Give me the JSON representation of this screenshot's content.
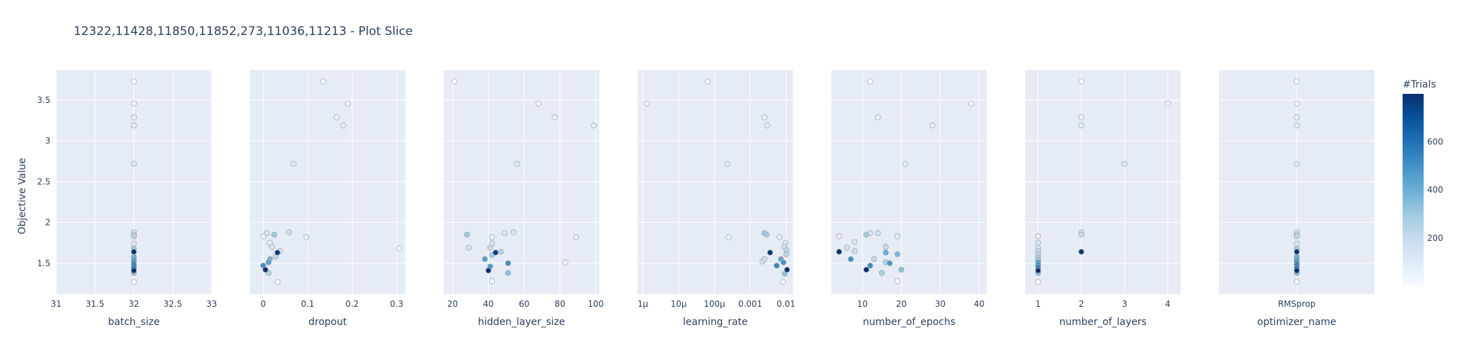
{
  "title": "12322,11428,11850,11852,273,11036,11213 - Plot Slice",
  "y_axis_label": "Objective Value",
  "colorbar": {
    "title": "#Trials",
    "ticks": [
      {
        "value": 200,
        "label": "200"
      },
      {
        "value": 400,
        "label": "400"
      },
      {
        "value": 600,
        "label": "600"
      }
    ],
    "range": [
      1,
      800
    ],
    "colors": [
      "#f7fbff",
      "#deebf7",
      "#c6dbef",
      "#9ecae1",
      "#6baed6",
      "#4292c6",
      "#2171b5",
      "#08519c",
      "#08306b"
    ]
  },
  "style": {
    "plot_bg": "#e5ecf6",
    "grid": "#ffffff",
    "text": "#2a3f5f",
    "marker_stroke": "#aaaaaa"
  },
  "chart_data": {
    "type": "scatter",
    "y_ticks": [
      {
        "value": 1.5,
        "label": "1.5"
      },
      {
        "value": 2,
        "label": "2"
      },
      {
        "value": 2.5,
        "label": "2.5"
      },
      {
        "value": 3,
        "label": "3"
      },
      {
        "value": 3.5,
        "label": "3.5"
      }
    ],
    "ylim": [
      1.12,
      3.87
    ],
    "panels": [
      {
        "xlabel": "batch_size",
        "scale": "linear",
        "xlim": [
          31,
          33
        ],
        "x_ticks": [
          {
            "value": 31,
            "label": "31"
          },
          {
            "value": 31.5,
            "label": "31.5"
          },
          {
            "value": 32,
            "label": "32"
          },
          {
            "value": 32.5,
            "label": "32.5"
          },
          {
            "value": 33,
            "label": "33"
          }
        ],
        "points": [
          {
            "x": 32,
            "y": 3.73,
            "t": 10
          },
          {
            "x": 32,
            "y": 3.46,
            "t": 40
          },
          {
            "x": 32,
            "y": 3.29,
            "t": 60
          },
          {
            "x": 32,
            "y": 3.19,
            "t": 80
          },
          {
            "x": 32,
            "y": 2.72,
            "t": 100
          },
          {
            "x": 32,
            "y": 1.88,
            "t": 150
          },
          {
            "x": 32,
            "y": 1.85,
            "t": 190
          },
          {
            "x": 32,
            "y": 1.83,
            "t": 230
          },
          {
            "x": 32,
            "y": 1.74,
            "t": 120
          },
          {
            "x": 32,
            "y": 1.68,
            "t": 300
          },
          {
            "x": 32,
            "y": 1.64,
            "t": 780
          },
          {
            "x": 32,
            "y": 1.58,
            "t": 400
          },
          {
            "x": 32,
            "y": 1.54,
            "t": 460
          },
          {
            "x": 32,
            "y": 1.51,
            "t": 520
          },
          {
            "x": 32,
            "y": 1.48,
            "t": 560
          },
          {
            "x": 32,
            "y": 1.44,
            "t": 620
          },
          {
            "x": 32,
            "y": 1.41,
            "t": 800
          },
          {
            "x": 32,
            "y": 1.38,
            "t": 350
          },
          {
            "x": 32,
            "y": 1.27,
            "t": 20
          }
        ]
      },
      {
        "xlabel": "dropout",
        "scale": "linear",
        "xlim": [
          -0.03,
          0.32
        ],
        "x_ticks": [
          {
            "value": 0,
            "label": "0"
          },
          {
            "value": 0.1,
            "label": "0.1"
          },
          {
            "value": 0.2,
            "label": "0.2"
          },
          {
            "value": 0.3,
            "label": "0.3"
          }
        ],
        "points": [
          {
            "x": 0.135,
            "y": 3.73,
            "t": 10
          },
          {
            "x": 0.19,
            "y": 3.46,
            "t": 40
          },
          {
            "x": 0.165,
            "y": 3.29,
            "t": 60
          },
          {
            "x": 0.18,
            "y": 3.19,
            "t": 80
          },
          {
            "x": 0.068,
            "y": 2.72,
            "t": 100
          },
          {
            "x": 0.008,
            "y": 1.87,
            "t": 150
          },
          {
            "x": 0.058,
            "y": 1.88,
            "t": 180
          },
          {
            "x": 0.025,
            "y": 1.85,
            "t": 300
          },
          {
            "x": 0.0,
            "y": 1.83,
            "t": 50
          },
          {
            "x": 0.097,
            "y": 1.82,
            "t": 70
          },
          {
            "x": 0.015,
            "y": 1.75,
            "t": 90
          },
          {
            "x": 0.02,
            "y": 1.7,
            "t": 130
          },
          {
            "x": 0.306,
            "y": 1.68,
            "t": 30
          },
          {
            "x": 0.038,
            "y": 1.65,
            "t": 160
          },
          {
            "x": 0.032,
            "y": 1.63,
            "t": 760
          },
          {
            "x": 0.028,
            "y": 1.58,
            "t": 210
          },
          {
            "x": 0.015,
            "y": 1.55,
            "t": 380
          },
          {
            "x": 0.012,
            "y": 1.51,
            "t": 440
          },
          {
            "x": 0.0,
            "y": 1.47,
            "t": 520
          },
          {
            "x": 0.005,
            "y": 1.42,
            "t": 800
          },
          {
            "x": 0.012,
            "y": 1.38,
            "t": 250
          },
          {
            "x": 0.032,
            "y": 1.27,
            "t": 20
          }
        ]
      },
      {
        "xlabel": "hidden_layer_size",
        "scale": "linear",
        "xlim": [
          15,
          102
        ],
        "x_ticks": [
          {
            "value": 20,
            "label": "20"
          },
          {
            "value": 40,
            "label": "40"
          },
          {
            "value": 60,
            "label": "60"
          },
          {
            "value": 80,
            "label": "80"
          },
          {
            "value": 100,
            "label": "100"
          }
        ],
        "points": [
          {
            "x": 21,
            "y": 3.73,
            "t": 10
          },
          {
            "x": 68,
            "y": 3.46,
            "t": 40
          },
          {
            "x": 77,
            "y": 3.29,
            "t": 60
          },
          {
            "x": 99,
            "y": 3.19,
            "t": 80
          },
          {
            "x": 56,
            "y": 2.72,
            "t": 100
          },
          {
            "x": 28,
            "y": 1.85,
            "t": 300
          },
          {
            "x": 49,
            "y": 1.87,
            "t": 120
          },
          {
            "x": 54,
            "y": 1.88,
            "t": 150
          },
          {
            "x": 42,
            "y": 1.82,
            "t": 70
          },
          {
            "x": 89,
            "y": 1.82,
            "t": 90
          },
          {
            "x": 42,
            "y": 1.74,
            "t": 130
          },
          {
            "x": 29,
            "y": 1.69,
            "t": 160
          },
          {
            "x": 41,
            "y": 1.69,
            "t": 200
          },
          {
            "x": 47,
            "y": 1.64,
            "t": 240
          },
          {
            "x": 44,
            "y": 1.63,
            "t": 760
          },
          {
            "x": 42,
            "y": 1.6,
            "t": 280
          },
          {
            "x": 38,
            "y": 1.55,
            "t": 450
          },
          {
            "x": 83,
            "y": 1.51,
            "t": 50
          },
          {
            "x": 51,
            "y": 1.5,
            "t": 520
          },
          {
            "x": 41,
            "y": 1.46,
            "t": 480
          },
          {
            "x": 40,
            "y": 1.41,
            "t": 800
          },
          {
            "x": 51,
            "y": 1.38,
            "t": 330
          },
          {
            "x": 42,
            "y": 1.28,
            "t": 20
          }
        ]
      },
      {
        "xlabel": "learning_rate",
        "scale": "log",
        "xlim": [
          -6.15,
          -1.8
        ],
        "x_ticks": [
          {
            "value": -6,
            "label": "1µ"
          },
          {
            "value": -5,
            "label": "10µ"
          },
          {
            "value": -4,
            "label": "100µ"
          },
          {
            "value": -3,
            "label": "0.001"
          },
          {
            "value": -2,
            "label": "0.01"
          }
        ],
        "points": [
          {
            "x": 1.3e-06,
            "y": 3.46,
            "t": 40
          },
          {
            "x": 6.5e-05,
            "y": 3.73,
            "t": 10
          },
          {
            "x": 0.0025,
            "y": 3.29,
            "t": 60
          },
          {
            "x": 0.003,
            "y": 3.19,
            "t": 80
          },
          {
            "x": 0.00023,
            "y": 2.72,
            "t": 100
          },
          {
            "x": 0.0025,
            "y": 1.87,
            "t": 300
          },
          {
            "x": 0.0029,
            "y": 1.85,
            "t": 260
          },
          {
            "x": 0.00025,
            "y": 1.82,
            "t": 70
          },
          {
            "x": 0.0066,
            "y": 1.82,
            "t": 90
          },
          {
            "x": 0.0097,
            "y": 1.75,
            "t": 130
          },
          {
            "x": 0.009,
            "y": 1.7,
            "t": 160
          },
          {
            "x": 0.0103,
            "y": 1.66,
            "t": 220
          },
          {
            "x": 0.0036,
            "y": 1.63,
            "t": 780
          },
          {
            "x": 0.0102,
            "y": 1.61,
            "t": 240
          },
          {
            "x": 0.0025,
            "y": 1.55,
            "t": 180
          },
          {
            "x": 0.0072,
            "y": 1.55,
            "t": 420
          },
          {
            "x": 0.0022,
            "y": 1.52,
            "t": 150
          },
          {
            "x": 0.0085,
            "y": 1.51,
            "t": 490
          },
          {
            "x": 0.0055,
            "y": 1.47,
            "t": 530
          },
          {
            "x": 0.0107,
            "y": 1.42,
            "t": 800
          },
          {
            "x": 0.0092,
            "y": 1.37,
            "t": 330
          },
          {
            "x": 0.0083,
            "y": 1.27,
            "t": 20
          }
        ]
      },
      {
        "xlabel": "number_of_epochs",
        "scale": "linear",
        "xlim": [
          2,
          42
        ],
        "x_ticks": [
          {
            "value": 10,
            "label": "10"
          },
          {
            "value": 20,
            "label": "20"
          },
          {
            "value": 30,
            "label": "30"
          },
          {
            "value": 40,
            "label": "40"
          }
        ],
        "points": [
          {
            "x": 12,
            "y": 3.73,
            "t": 10
          },
          {
            "x": 38,
            "y": 3.46,
            "t": 40
          },
          {
            "x": 14,
            "y": 3.29,
            "t": 60
          },
          {
            "x": 28,
            "y": 3.19,
            "t": 80
          },
          {
            "x": 21,
            "y": 2.72,
            "t": 100
          },
          {
            "x": 4,
            "y": 1.83,
            "t": 70
          },
          {
            "x": 11,
            "y": 1.85,
            "t": 290
          },
          {
            "x": 12,
            "y": 1.87,
            "t": 120
          },
          {
            "x": 14,
            "y": 1.87,
            "t": 150
          },
          {
            "x": 19,
            "y": 1.83,
            "t": 90
          },
          {
            "x": 8,
            "y": 1.76,
            "t": 130
          },
          {
            "x": 6,
            "y": 1.69,
            "t": 160
          },
          {
            "x": 16,
            "y": 1.7,
            "t": 200
          },
          {
            "x": 4,
            "y": 1.64,
            "t": 790
          },
          {
            "x": 8,
            "y": 1.65,
            "t": 180
          },
          {
            "x": 16,
            "y": 1.63,
            "t": 410
          },
          {
            "x": 19,
            "y": 1.61,
            "t": 360
          },
          {
            "x": 7,
            "y": 1.55,
            "t": 500
          },
          {
            "x": 13,
            "y": 1.55,
            "t": 220
          },
          {
            "x": 16,
            "y": 1.51,
            "t": 250
          },
          {
            "x": 17,
            "y": 1.5,
            "t": 480
          },
          {
            "x": 12,
            "y": 1.47,
            "t": 520
          },
          {
            "x": 11,
            "y": 1.42,
            "t": 800
          },
          {
            "x": 20,
            "y": 1.42,
            "t": 340
          },
          {
            "x": 15,
            "y": 1.38,
            "t": 270
          },
          {
            "x": 19,
            "y": 1.28,
            "t": 20
          }
        ]
      },
      {
        "xlabel": "number_of_layers",
        "scale": "linear",
        "xlim": [
          0.7,
          4.3
        ],
        "x_ticks": [
          {
            "value": 1,
            "label": "1"
          },
          {
            "value": 2,
            "label": "2"
          },
          {
            "value": 3,
            "label": "3"
          },
          {
            "value": 4,
            "label": "4"
          }
        ],
        "points": [
          {
            "x": 2,
            "y": 3.73,
            "t": 10
          },
          {
            "x": 4,
            "y": 3.46,
            "t": 40
          },
          {
            "x": 2,
            "y": 3.29,
            "t": 60
          },
          {
            "x": 2,
            "y": 3.19,
            "t": 80
          },
          {
            "x": 3,
            "y": 2.72,
            "t": 100
          },
          {
            "x": 2,
            "y": 1.88,
            "t": 150
          },
          {
            "x": 2,
            "y": 1.85,
            "t": 200
          },
          {
            "x": 1,
            "y": 1.83,
            "t": 70
          },
          {
            "x": 1,
            "y": 1.75,
            "t": 130
          },
          {
            "x": 1,
            "y": 1.69,
            "t": 160
          },
          {
            "x": 1,
            "y": 1.65,
            "t": 200
          },
          {
            "x": 2,
            "y": 1.64,
            "t": 780
          },
          {
            "x": 1,
            "y": 1.61,
            "t": 230
          },
          {
            "x": 1,
            "y": 1.57,
            "t": 260
          },
          {
            "x": 1,
            "y": 1.54,
            "t": 300
          },
          {
            "x": 1,
            "y": 1.51,
            "t": 460
          },
          {
            "x": 1,
            "y": 1.48,
            "t": 520
          },
          {
            "x": 1,
            "y": 1.45,
            "t": 560
          },
          {
            "x": 1,
            "y": 1.41,
            "t": 800
          },
          {
            "x": 1,
            "y": 1.38,
            "t": 340
          },
          {
            "x": 1,
            "y": 1.27,
            "t": 20
          }
        ]
      },
      {
        "xlabel": "optimizer_name",
        "scale": "category",
        "categories": [
          "RMSprop"
        ],
        "x_ticks": [
          {
            "value": "RMSprop",
            "label": "RMSprop"
          }
        ],
        "points": [
          {
            "x": "RMSprop",
            "y": 3.73,
            "t": 10
          },
          {
            "x": "RMSprop",
            "y": 3.46,
            "t": 40
          },
          {
            "x": "RMSprop",
            "y": 3.29,
            "t": 60
          },
          {
            "x": "RMSprop",
            "y": 3.19,
            "t": 80
          },
          {
            "x": "RMSprop",
            "y": 2.72,
            "t": 100
          },
          {
            "x": "RMSprop",
            "y": 1.88,
            "t": 150
          },
          {
            "x": "RMSprop",
            "y": 1.85,
            "t": 190
          },
          {
            "x": "RMSprop",
            "y": 1.83,
            "t": 230
          },
          {
            "x": "RMSprop",
            "y": 1.74,
            "t": 120
          },
          {
            "x": "RMSprop",
            "y": 1.68,
            "t": 300
          },
          {
            "x": "RMSprop",
            "y": 1.64,
            "t": 780
          },
          {
            "x": "RMSprop",
            "y": 1.58,
            "t": 400
          },
          {
            "x": "RMSprop",
            "y": 1.54,
            "t": 460
          },
          {
            "x": "RMSprop",
            "y": 1.51,
            "t": 520
          },
          {
            "x": "RMSprop",
            "y": 1.48,
            "t": 560
          },
          {
            "x": "RMSprop",
            "y": 1.44,
            "t": 620
          },
          {
            "x": "RMSprop",
            "y": 1.41,
            "t": 800
          },
          {
            "x": "RMSprop",
            "y": 1.38,
            "t": 350
          },
          {
            "x": "RMSprop",
            "y": 1.27,
            "t": 20
          }
        ]
      }
    ]
  }
}
